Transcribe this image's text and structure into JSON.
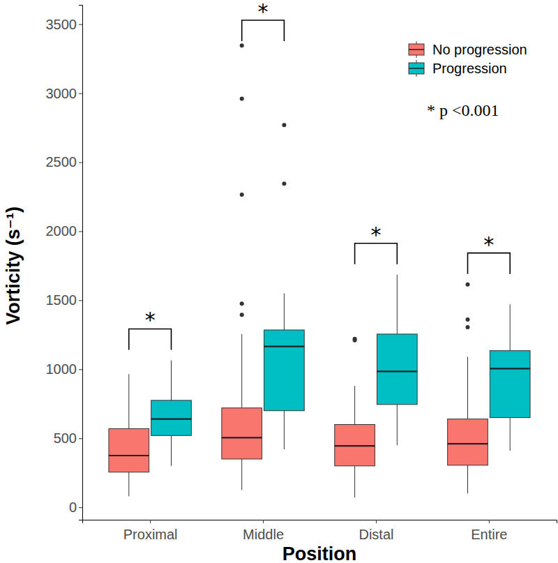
{
  "chart_data": {
    "type": "box",
    "x_label": "Position",
    "y_label": "Vorticity (s⁻¹)",
    "categories": [
      "Proximal",
      "Middle",
      "Distal",
      "Entire"
    ],
    "series": [
      {
        "name": "No progression",
        "color": "#F8766D",
        "values": [
          {
            "min": 80,
            "q1": 255,
            "median": 375,
            "q3": 570,
            "max": 965,
            "outliers": []
          },
          {
            "min": 125,
            "q1": 350,
            "median": 505,
            "q3": 720,
            "max": 1255,
            "outliers": [
              1395,
              1475,
              2265,
              2960,
              3345
            ]
          },
          {
            "min": 70,
            "q1": 300,
            "median": 445,
            "q3": 600,
            "max": 880,
            "outliers": [
              1210,
              1220
            ]
          },
          {
            "min": 100,
            "q1": 305,
            "median": 460,
            "q3": 640,
            "max": 1090,
            "outliers": [
              1305,
              1360,
              1615
            ]
          }
        ]
      },
      {
        "name": "Progression",
        "color": "#00BFC4",
        "values": [
          {
            "min": 300,
            "q1": 520,
            "median": 640,
            "q3": 775,
            "max": 1065,
            "outliers": []
          },
          {
            "min": 420,
            "q1": 700,
            "median": 1165,
            "q3": 1285,
            "max": 1550,
            "outliers": [
              2345,
              2770
            ]
          },
          {
            "min": 450,
            "q1": 745,
            "median": 985,
            "q3": 1255,
            "max": 1685,
            "outliers": []
          },
          {
            "min": 410,
            "q1": 650,
            "median": 1005,
            "q3": 1135,
            "max": 1470,
            "outliers": []
          }
        ]
      }
    ],
    "significance": [
      "*",
      "*",
      "*",
      "*"
    ],
    "annotations": [
      "* p <0.001"
    ],
    "ylim": [
      -90,
      3640
    ],
    "yticks": [
      0,
      500,
      1000,
      1500,
      2000,
      2500,
      3000,
      3500
    ],
    "legend": "top-right",
    "grid": false
  }
}
